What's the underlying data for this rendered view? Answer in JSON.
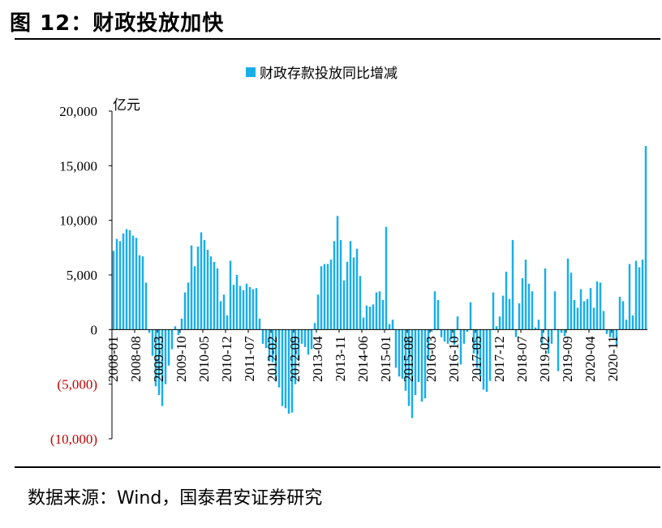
{
  "figure": {
    "title": "图 12：财政投放加快",
    "source": "数据来源：Wind，国泰君安证券研究"
  },
  "colors": {
    "bar": "#1aaee8",
    "negative_tick": "#c00000",
    "axis": "#000000"
  },
  "chart_data": {
    "type": "bar",
    "title": "",
    "legend": [
      "财政存款投放同比增减"
    ],
    "legend_position": "top-center",
    "unit": "亿元",
    "ylim": [
      -10000,
      20000
    ],
    "yticks": [
      20000,
      15000,
      10000,
      5000,
      0,
      -5000,
      -10000
    ],
    "ytick_labels": [
      "20,000",
      "15,000",
      "10,000",
      "5,000",
      "0",
      "(5,000)",
      "(10,000)"
    ],
    "x_tick_labels": [
      "2008-01",
      "2008-08",
      "2009-03",
      "2009-10",
      "2010-05",
      "2010-12",
      "2011-07",
      "2012-02",
      "2012-09",
      "2013-04",
      "2013-11",
      "2014-06",
      "2015-01",
      "2015-08",
      "2016-03",
      "2016-10",
      "2017-05",
      "2017-12",
      "2018-07",
      "2019-02",
      "2019-09",
      "2020-04",
      "2020-11"
    ],
    "x_start": "2008-01",
    "x_end": "2021-01",
    "series": [
      {
        "name": "财政存款投放同比增减",
        "values": [
          7200,
          8300,
          8100,
          8800,
          9200,
          9100,
          8600,
          8400,
          6800,
          6700,
          4300,
          -300,
          -2400,
          -5200,
          -6000,
          -7000,
          -5000,
          -3300,
          -1800,
          300,
          -500,
          1000,
          3400,
          4300,
          7700,
          5800,
          7600,
          8900,
          8200,
          7300,
          6700,
          6200,
          5600,
          2600,
          3200,
          1300,
          6300,
          4100,
          5000,
          4000,
          3600,
          4200,
          3900,
          3700,
          3800,
          1000,
          -1300,
          -1700,
          -2900,
          -3000,
          -4600,
          -5300,
          -7000,
          -7200,
          -7700,
          -7600,
          -5000,
          -2800,
          -1300,
          -1600,
          -2300,
          -1800,
          600,
          3200,
          5800,
          6000,
          6000,
          6400,
          8100,
          10400,
          8200,
          4500,
          6200,
          8100,
          6600,
          7400,
          4900,
          1100,
          2200,
          2100,
          2300,
          3400,
          3500,
          2700,
          9400,
          500,
          900,
          -3500,
          -4300,
          -4500,
          -5600,
          -7000,
          -8100,
          -6000,
          -4800,
          -6600,
          -6300,
          -2700,
          -200,
          3500,
          2700,
          -700,
          -1100,
          -1300,
          -900,
          -1400,
          1200,
          -3200,
          -1300,
          -200,
          2500,
          -2200,
          -3500,
          -4300,
          -5500,
          -5700,
          -4700,
          3400,
          300,
          1200,
          3100,
          5300,
          2800,
          8200,
          -700,
          2400,
          4700,
          6400,
          4200,
          3500,
          200,
          900,
          -1400,
          5600,
          -2200,
          -1300,
          3500,
          -3800,
          -300,
          -600,
          6500,
          5200,
          2700,
          2000,
          3700,
          2600,
          2800,
          3800,
          2000,
          4400,
          4300,
          1700,
          -400,
          -700,
          -800,
          -1500,
          3000,
          2600,
          900,
          6000,
          1300,
          6300,
          5700,
          6400,
          16800
        ]
      }
    ]
  }
}
